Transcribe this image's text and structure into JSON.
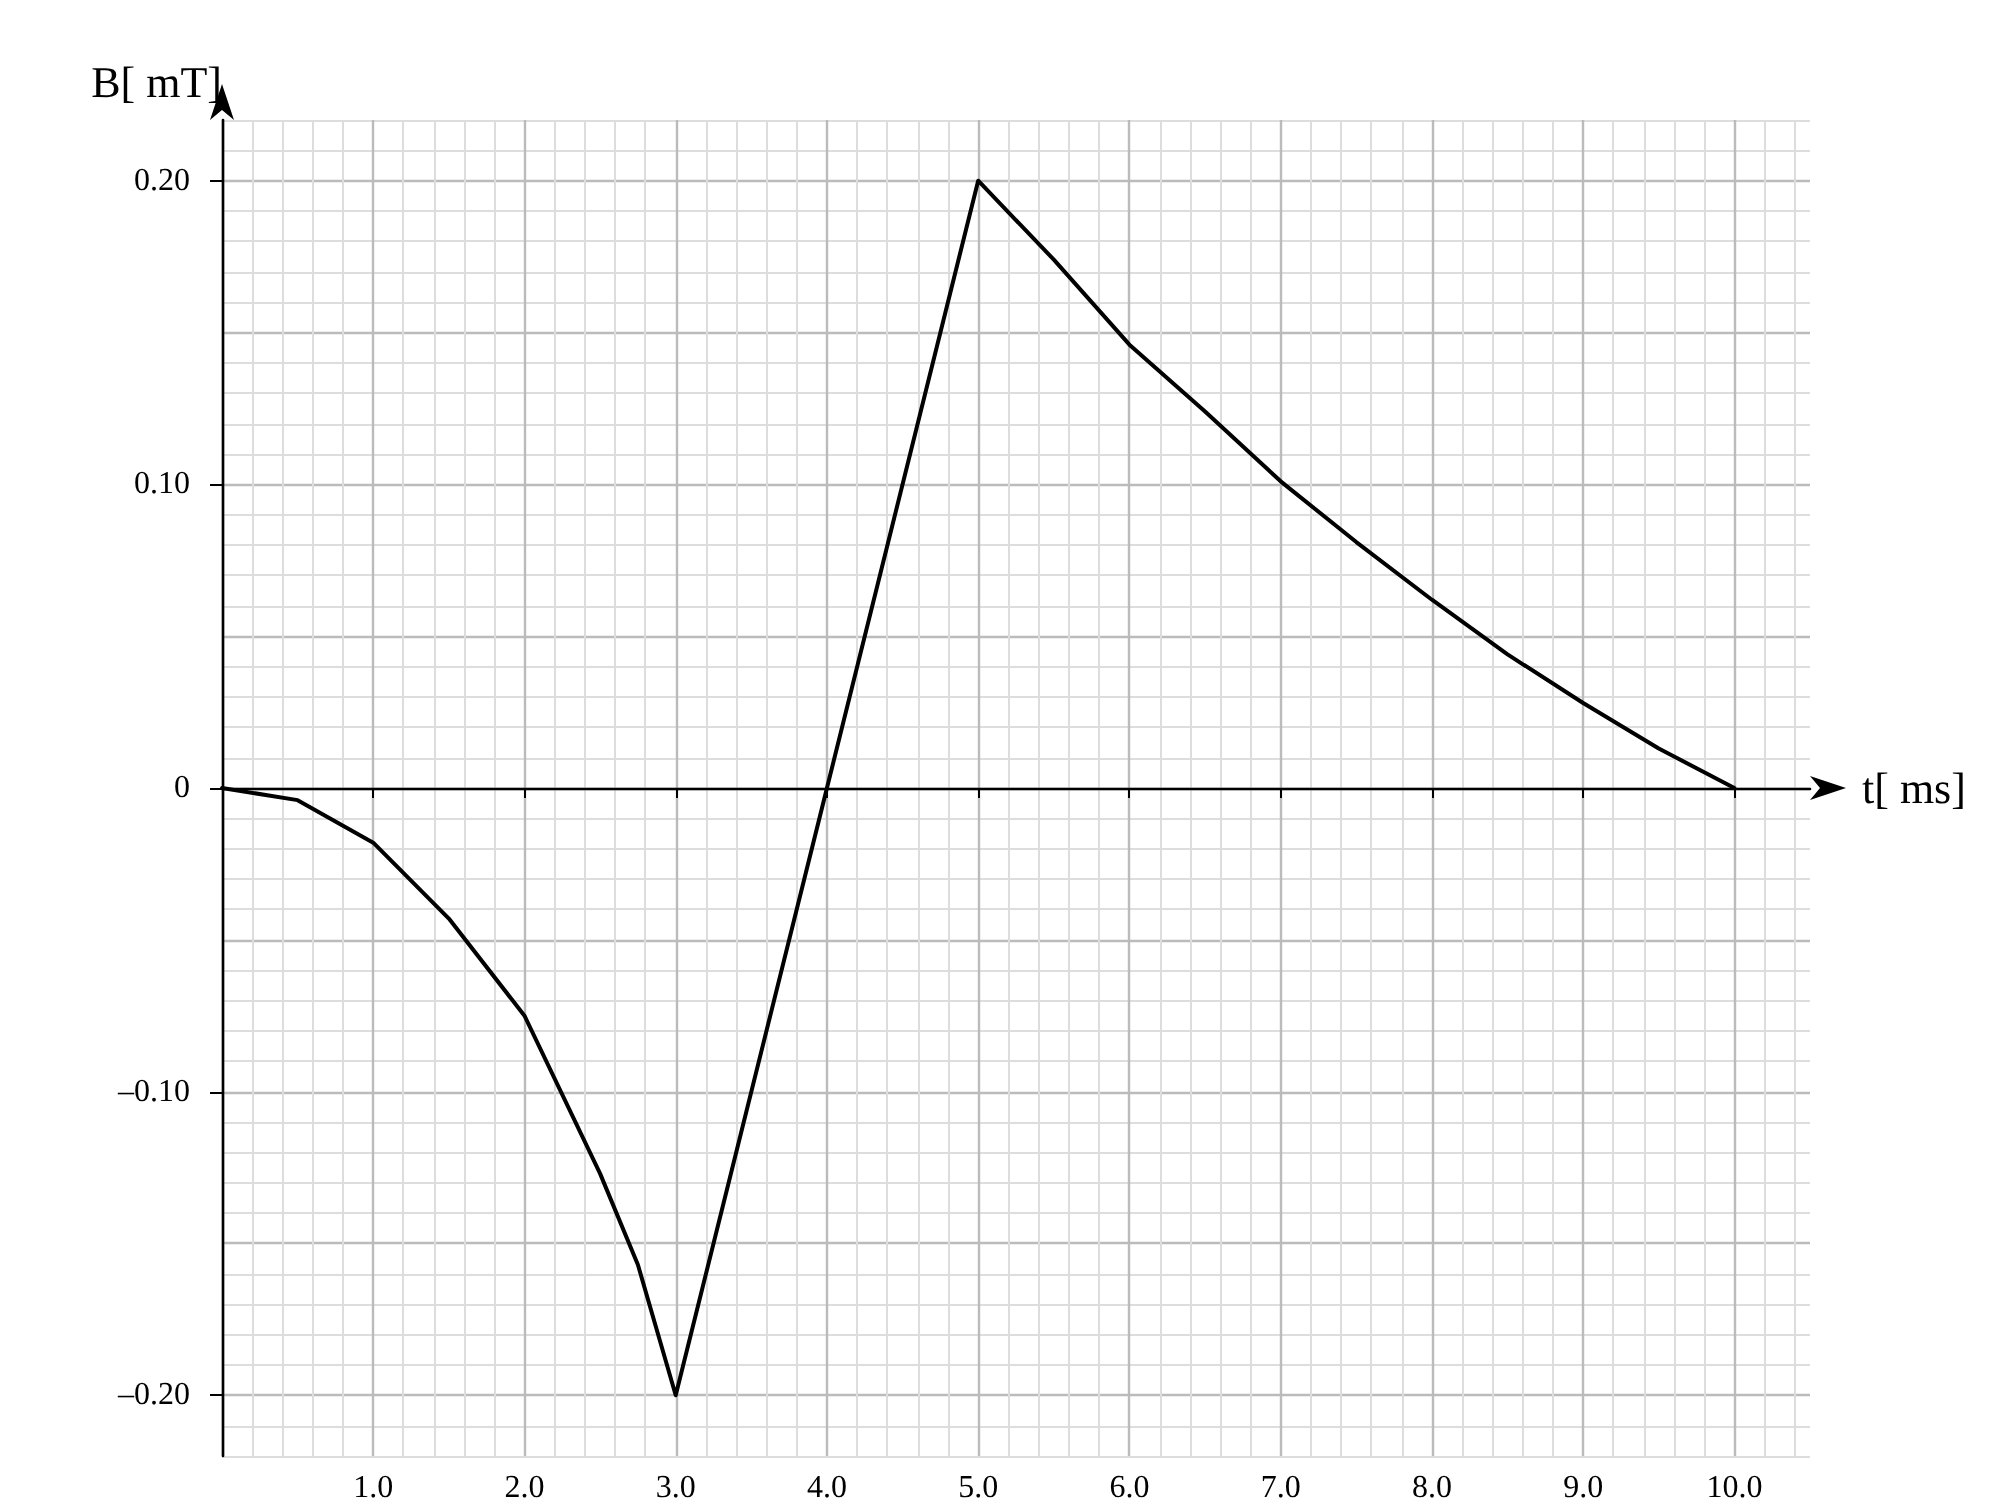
{
  "chart_data": {
    "type": "line",
    "xlabel": "t[ ms]",
    "ylabel": "B[ mT]",
    "xlim": [
      0,
      10.5
    ],
    "ylim": [
      -0.22,
      0.22
    ],
    "xticks": [
      {
        "value": 1,
        "label": "1.0"
      },
      {
        "value": 2,
        "label": "2.0"
      },
      {
        "value": 3,
        "label": "3.0"
      },
      {
        "value": 4,
        "label": "4.0"
      },
      {
        "value": 5,
        "label": "5.0"
      },
      {
        "value": 6,
        "label": "6.0"
      },
      {
        "value": 7,
        "label": "7.0"
      },
      {
        "value": 8,
        "label": "8.0"
      },
      {
        "value": 9,
        "label": "9.0"
      },
      {
        "value": 10,
        "label": "10.0"
      }
    ],
    "yticks": [
      {
        "value": -0.2,
        "label": "–0.20"
      },
      {
        "value": -0.1,
        "label": "–0.10"
      },
      0,
      {
        "value": 0.1,
        "label": "0.10"
      },
      {
        "value": 0.2,
        "label": "0.20"
      }
    ],
    "grid": true,
    "marker": "none",
    "line_style": "solid",
    "series": [
      {
        "color": "#000000",
        "x": [
          0,
          0.5,
          1,
          1.5,
          2,
          2.5,
          2.75,
          3,
          4,
          5,
          5.5,
          6,
          6.5,
          7,
          7.5,
          8,
          8.5,
          9,
          9.5,
          10
        ],
        "values": [
          0,
          -0.004,
          -0.018,
          -0.043,
          -0.075,
          -0.127,
          -0.157,
          -0.2,
          0,
          0.2,
          0.174,
          0.146,
          0.124,
          0.101,
          0.081,
          0.062,
          0.044,
          0.028,
          0.013,
          0
        ]
      }
    ]
  }
}
